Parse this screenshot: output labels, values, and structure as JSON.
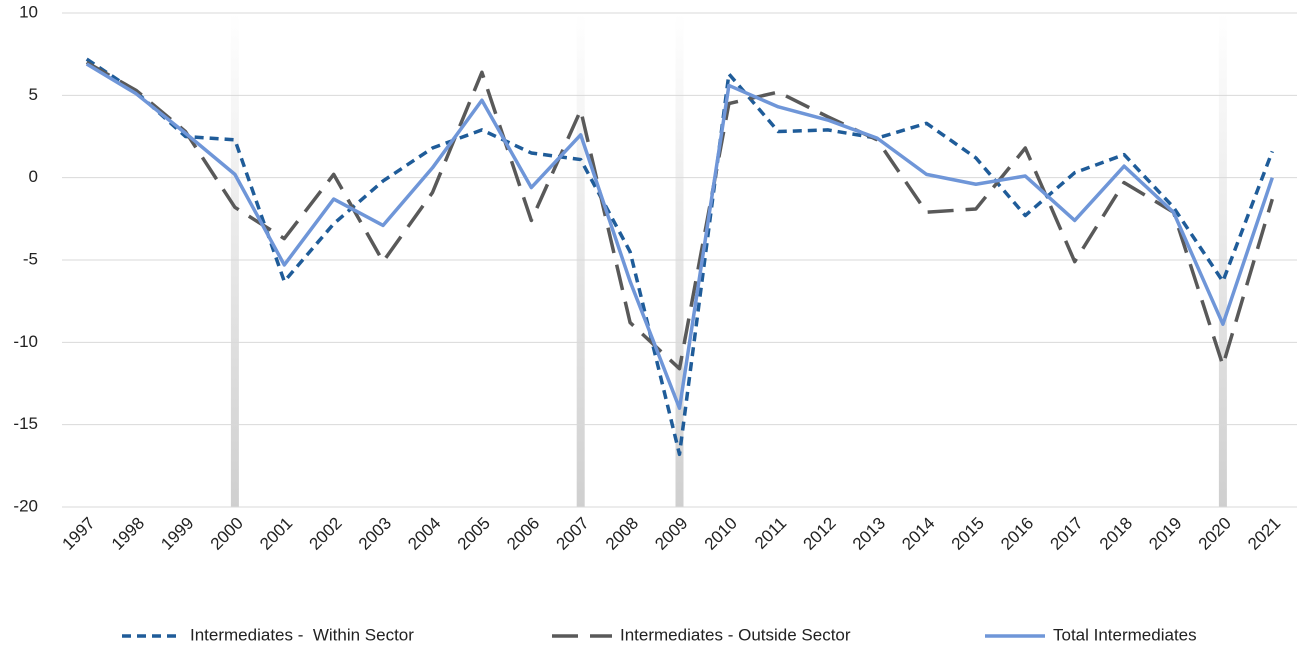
{
  "chart_data": {
    "type": "line",
    "categories": [
      "1997",
      "1998",
      "1999",
      "2000",
      "2001",
      "2002",
      "2003",
      "2004",
      "2005",
      "2006",
      "2007",
      "2008",
      "2009",
      "2010",
      "2011",
      "2012",
      "2013",
      "2014",
      "2015",
      "2016",
      "2017",
      "2018",
      "2019",
      "2020",
      "2021"
    ],
    "shaded_categories": [
      "2000",
      "2007",
      "2009",
      "2020"
    ],
    "series": [
      {
        "name": "Intermediates -  Within Sector",
        "color": "#1f5c99",
        "dash": "short",
        "values": [
          7.2,
          5.2,
          2.5,
          2.3,
          -6.3,
          -2.8,
          -0.2,
          1.8,
          2.9,
          1.5,
          1.1,
          -4.5,
          -16.8,
          6.3,
          2.8,
          2.9,
          2.4,
          3.3,
          1.2,
          -2.3,
          0.3,
          1.4,
          -1.8,
          -6.3,
          1.6
        ]
      },
      {
        "name": "Intermediates - Outside Sector",
        "color": "#595959",
        "dash": "long",
        "values": [
          7.0,
          5.3,
          2.8,
          -1.8,
          -3.7,
          0.2,
          -5.1,
          -0.9,
          6.4,
          -2.6,
          4.1,
          -8.8,
          -11.6,
          4.5,
          5.2,
          3.7,
          2.3,
          -2.1,
          -1.9,
          1.8,
          -5.1,
          -0.3,
          -2.1,
          -11.4,
          -1.3
        ]
      },
      {
        "name": "Total Intermediates",
        "color": "#6f96d8",
        "dash": "solid",
        "values": [
          6.9,
          5.1,
          2.7,
          0.2,
          -5.3,
          -1.3,
          -2.9,
          0.6,
          4.7,
          -0.6,
          2.6,
          -6.3,
          -14.0,
          5.6,
          4.3,
          3.5,
          2.4,
          0.2,
          -0.4,
          0.1,
          -2.6,
          0.7,
          -2.1,
          -8.9,
          0.0
        ]
      }
    ],
    "ylim": [
      -20,
      10
    ],
    "yticks": [
      -20,
      -15,
      -10,
      -5,
      0,
      5,
      10
    ],
    "grid": true,
    "legend": "bottom"
  }
}
